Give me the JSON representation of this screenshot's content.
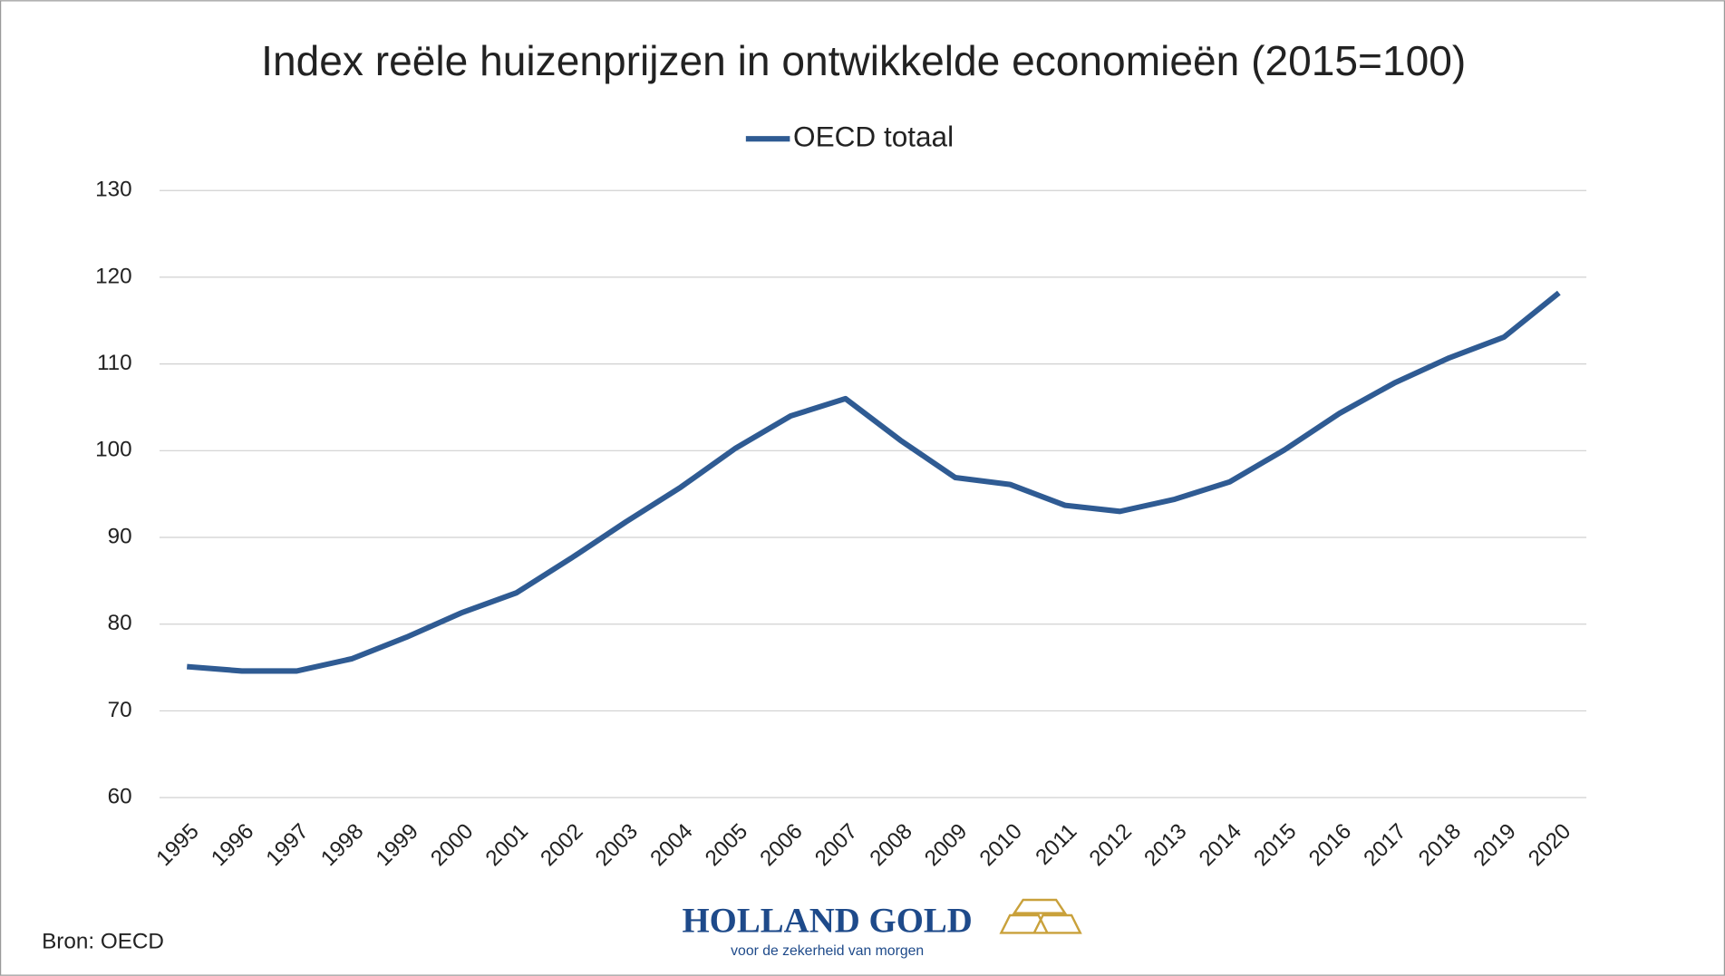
{
  "chart_data": {
    "type": "line",
    "title": "Index reële huizenprijzen  in ontwikkelde economieën (2015=100)",
    "categories": [
      "1995",
      "1996",
      "1997",
      "1998",
      "1999",
      "2000",
      "2001",
      "2002",
      "2003",
      "2004",
      "2005",
      "2006",
      "2007",
      "2008",
      "2009",
      "2010",
      "2011",
      "2012",
      "2013",
      "2014",
      "2015",
      "2016",
      "2017",
      "2018",
      "2019",
      "2020"
    ],
    "series": [
      {
        "name": "OECD totaal",
        "color": "#2f5b93",
        "values": [
          75.1,
          74.6,
          74.6,
          76.0,
          78.5,
          81.3,
          83.6,
          87.6,
          91.8,
          95.8,
          100.3,
          104.0,
          106.0,
          101.2,
          96.9,
          96.1,
          93.7,
          93.0,
          94.4,
          96.4,
          100.1,
          104.3,
          107.8,
          110.7,
          113.1,
          118.2
        ]
      }
    ],
    "ylim": [
      60,
      130
    ],
    "yticks": [
      60,
      70,
      80,
      90,
      100,
      110,
      120,
      130
    ],
    "grid": true,
    "legend": "top"
  },
  "source": "Bron: OECD",
  "logo": {
    "name": "HOLLAND GOLD",
    "tagline": "voor de zekerheid van morgen"
  }
}
